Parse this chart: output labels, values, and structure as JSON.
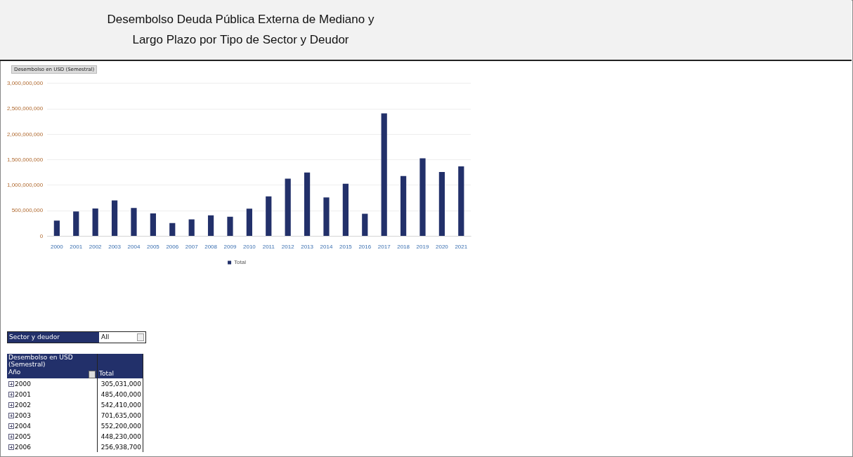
{
  "chart_data": {
    "type": "bar",
    "title": "Desembolso Deuda Pública Externa de Mediano y Largo Plazo por Tipo de Sector y Deudor",
    "ylabel": "Desembolso en USD (Semestral)",
    "categories": [
      "2000",
      "2001",
      "2002",
      "2003",
      "2004",
      "2005",
      "2006",
      "2007",
      "2008",
      "2009",
      "2010",
      "2011",
      "2012",
      "2013",
      "2014",
      "2015",
      "2016",
      "2017",
      "2018",
      "2019",
      "2020",
      "2021"
    ],
    "series": [
      {
        "name": "Total",
        "color": "#22306a",
        "values": [
          305031000,
          485400000,
          542410000,
          701635000,
          552200000,
          448230000,
          256938700,
          330000000,
          410000000,
          380000000,
          540000000,
          780000000,
          1130000000,
          1250000000,
          760000000,
          1030000000,
          440000000,
          2410000000,
          1180000000,
          1530000000,
          1260000000,
          1370000000
        ]
      }
    ],
    "ylim": [
      0,
      3000000000
    ],
    "yticks": [
      0,
      {
        "value": 500000000,
        "label": "500,000,000"
      },
      {
        "value": 1000000000,
        "label": "1,000,000,000"
      },
      {
        "value": 1500000000,
        "label": "1,500,000,000"
      },
      {
        "value": 2000000000,
        "label": "2,000,000,000"
      },
      {
        "value": 2500000000,
        "label": "2,500,000,000"
      },
      {
        "value": 3000000000,
        "label": "3,000,000,000"
      }
    ],
    "grid": "y",
    "legend": "bottom",
    "annotations": [
      "Sector y deudor",
      "All",
      "Año",
      "305,031,000",
      "485,400,000",
      "542,410,000",
      "701,635,000",
      "552,200,000",
      "448,230,000",
      "256,938,700"
    ]
  }
}
